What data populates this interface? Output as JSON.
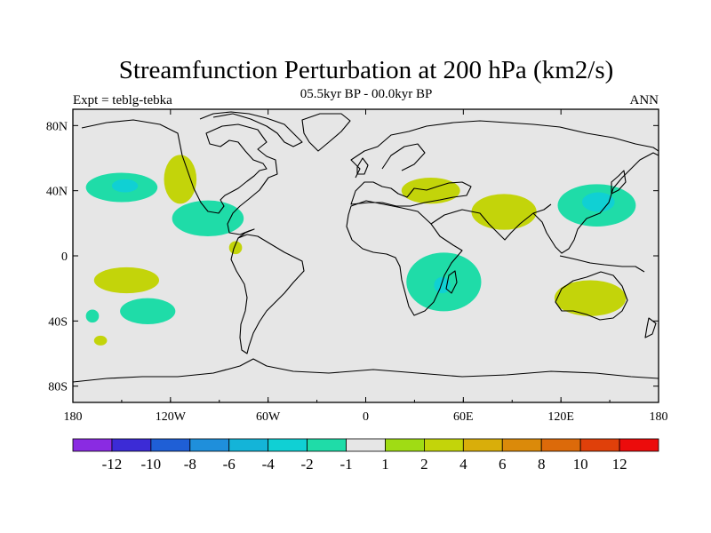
{
  "chart_data": {
    "type": "heatmap",
    "title": "Streamfunction Perturbation at 200 hPa (km2/s)",
    "subtitle_left": "Expt = teblg-tebka",
    "subtitle_center": "05.5kyr BP - 00.0kyr BP",
    "subtitle_right": "ANN",
    "x_range": [
      -180,
      180
    ],
    "y_range": [
      -90,
      90
    ],
    "x_ticks": [
      {
        "value": -180,
        "label": "180"
      },
      {
        "value": -120,
        "label": "120W"
      },
      {
        "value": -60,
        "label": "60W"
      },
      {
        "value": 0,
        "label": "0"
      },
      {
        "value": 60,
        "label": "60E"
      },
      {
        "value": 120,
        "label": "120E"
      },
      {
        "value": 180,
        "label": "180"
      }
    ],
    "y_ticks": [
      {
        "value": 80,
        "label": "80N"
      },
      {
        "value": 40,
        "label": "40N"
      },
      {
        "value": 0,
        "label": "0"
      },
      {
        "value": -40,
        "label": "40S"
      },
      {
        "value": -80,
        "label": "80S"
      }
    ],
    "colorbar": {
      "colors": [
        "#8a2be2",
        "#3c2bd6",
        "#1f5fd6",
        "#1f8fdb",
        "#14b4d8",
        "#10d0d4",
        "#1fdca8",
        "#e6e6e6",
        "#a0dc14",
        "#c3d40a",
        "#d9ae0a",
        "#db8a0a",
        "#dc6a0a",
        "#e0400a",
        "#ec0c0c"
      ],
      "labels": [
        {
          "boundary": 1,
          "label": "-12"
        },
        {
          "boundary": 2,
          "label": "-10"
        },
        {
          "boundary": 3,
          "label": "-8"
        },
        {
          "boundary": 4,
          "label": "-6"
        },
        {
          "boundary": 5,
          "label": "-4"
        },
        {
          "boundary": 6,
          "label": "-2"
        },
        {
          "boundary": 7,
          "label": "-1"
        },
        {
          "boundary": 8,
          "label": "1"
        },
        {
          "boundary": 9,
          "label": "2"
        },
        {
          "boundary": 10,
          "label": "4"
        },
        {
          "boundary": 11,
          "label": "6"
        },
        {
          "boundary": 12,
          "label": "8"
        },
        {
          "boundary": 13,
          "label": "10"
        },
        {
          "boundary": 14,
          "label": "12"
        }
      ]
    },
    "background_level_color": "#e6e6e6",
    "anomalies": [
      {
        "name": "n-pacific-low",
        "lon": -150,
        "lat": 42,
        "rlon": 22,
        "rlat": 9,
        "value": -2
      },
      {
        "name": "n-pacific-low-core",
        "lon": -148,
        "lat": 43,
        "rlon": 8,
        "rlat": 4,
        "value": -4
      },
      {
        "name": "w-north-america-high",
        "lon": -114,
        "lat": 47,
        "rlon": 10,
        "rlat": 15,
        "value": 2
      },
      {
        "name": "gulf-of-mexico-low",
        "lon": -97,
        "lat": 23,
        "rlon": 22,
        "rlat": 11,
        "value": -2
      },
      {
        "name": "n-south-america-high",
        "lon": -80,
        "lat": 5,
        "rlon": 4,
        "rlat": 4,
        "value": 2
      },
      {
        "name": "s-pacific-high",
        "lon": -147,
        "lat": -15,
        "rlon": 20,
        "rlat": 8,
        "value": 2
      },
      {
        "name": "s-pacific-low",
        "lon": -134,
        "lat": -34,
        "rlon": 17,
        "rlat": 8,
        "value": -2
      },
      {
        "name": "se-pacific-low",
        "lon": -168,
        "lat": -37,
        "rlon": 4,
        "rlat": 4,
        "value": -2
      },
      {
        "name": "far-s-pacific-high",
        "lon": -163,
        "lat": -52,
        "rlon": 4,
        "rlat": 3,
        "value": 2
      },
      {
        "name": "mediterranean-high",
        "lon": 40,
        "lat": 40,
        "rlon": 18,
        "rlat": 8,
        "value": 2
      },
      {
        "name": "south-asia-high",
        "lon": 85,
        "lat": 27,
        "rlon": 20,
        "rlat": 11,
        "value": 2
      },
      {
        "name": "east-africa-low",
        "lon": 48,
        "lat": -16,
        "rlon": 23,
        "rlat": 18,
        "value": -2
      },
      {
        "name": "east-africa-low-core",
        "lon": 47,
        "lat": -18,
        "rlon": 5,
        "rlat": 5,
        "value": -4
      },
      {
        "name": "nw-pacific-low",
        "lon": 142,
        "lat": 31,
        "rlon": 24,
        "rlat": 13,
        "value": -2
      },
      {
        "name": "nw-pacific-low-core",
        "lon": 143,
        "lat": 33,
        "rlon": 10,
        "rlat": 6,
        "value": -4
      },
      {
        "name": "australia-high",
        "lon": 138,
        "lat": -26,
        "rlon": 22,
        "rlat": 11,
        "value": 2
      }
    ]
  }
}
